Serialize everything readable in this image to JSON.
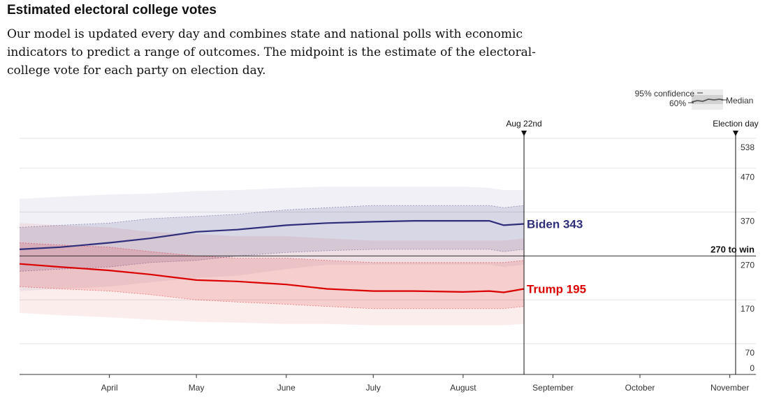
{
  "chart_data": {
    "type": "line",
    "title": "Estimated electoral college votes",
    "subtitle": "Our model is updated every day and combines state and national polls with economic indicators to predict a range of outcomes. The midpoint is the estimate of the electoral-college vote for each party on election day.",
    "ylim": [
      0,
      538
    ],
    "y_ticks": [
      0,
      70,
      170,
      270,
      370,
      470,
      538
    ],
    "x_domain": [
      "2020-03-01",
      "2020-11-10"
    ],
    "x_ticks": [
      {
        "label": "April",
        "date": "2020-04-01"
      },
      {
        "label": "May",
        "date": "2020-05-01"
      },
      {
        "label": "June",
        "date": "2020-06-01"
      },
      {
        "label": "July",
        "date": "2020-07-01"
      },
      {
        "label": "August",
        "date": "2020-08-01"
      },
      {
        "label": "September",
        "date": "2020-09-01"
      },
      {
        "label": "October",
        "date": "2020-10-01"
      },
      {
        "label": "November",
        "date": "2020-11-01"
      }
    ],
    "markers": [
      {
        "label": "Aug 22nd",
        "date": "2020-08-22"
      },
      {
        "label": "Election day",
        "date": "2020-11-03"
      }
    ],
    "threshold": {
      "value": 270,
      "label": "270 to win"
    },
    "legend": {
      "ci95": "95% confidence",
      "ci60": "60%",
      "median": "Median",
      "position": "top-right"
    },
    "series": [
      {
        "name": "Biden",
        "end_label": "Biden 343",
        "color": "#2e2e7a",
        "dates": [
          "2020-03-01",
          "2020-03-15",
          "2020-04-01",
          "2020-04-15",
          "2020-05-01",
          "2020-05-15",
          "2020-06-01",
          "2020-06-15",
          "2020-07-01",
          "2020-07-15",
          "2020-08-01",
          "2020-08-10",
          "2020-08-15",
          "2020-08-22"
        ],
        "median": [
          285,
          290,
          300,
          310,
          325,
          330,
          340,
          345,
          348,
          350,
          350,
          350,
          340,
          343
        ],
        "ci60_low": [
          235,
          240,
          245,
          255,
          260,
          270,
          278,
          282,
          285,
          285,
          285,
          285,
          280,
          285
        ],
        "ci60_high": [
          335,
          340,
          345,
          355,
          360,
          365,
          375,
          380,
          385,
          385,
          385,
          385,
          380,
          385
        ],
        "ci95_low": [
          190,
          195,
          200,
          210,
          220,
          225,
          240,
          250,
          250,
          250,
          250,
          250,
          245,
          250
        ],
        "ci95_high": [
          400,
          405,
          410,
          412,
          418,
          420,
          425,
          428,
          428,
          428,
          428,
          425,
          420,
          420
        ]
      },
      {
        "name": "Trump",
        "end_label": "Trump 195",
        "color": "#db0000",
        "dates": [
          "2020-03-01",
          "2020-03-15",
          "2020-04-01",
          "2020-04-15",
          "2020-05-01",
          "2020-05-15",
          "2020-06-01",
          "2020-06-15",
          "2020-07-01",
          "2020-07-15",
          "2020-08-01",
          "2020-08-10",
          "2020-08-15",
          "2020-08-22"
        ],
        "median": [
          252,
          245,
          237,
          228,
          215,
          212,
          205,
          195,
          190,
          190,
          188,
          190,
          187,
          195
        ],
        "ci60_low": [
          200,
          195,
          190,
          182,
          170,
          165,
          160,
          155,
          150,
          150,
          150,
          150,
          150,
          155
        ],
        "ci60_high": [
          300,
          295,
          290,
          280,
          270,
          265,
          265,
          260,
          255,
          255,
          255,
          255,
          255,
          260
        ],
        "ci95_low": [
          140,
          135,
          130,
          125,
          120,
          118,
          115,
          115,
          112,
          112,
          112,
          112,
          112,
          115
        ],
        "ci95_high": [
          345,
          340,
          335,
          325,
          320,
          315,
          315,
          310,
          305,
          305,
          305,
          305,
          305,
          310
        ]
      }
    ]
  }
}
